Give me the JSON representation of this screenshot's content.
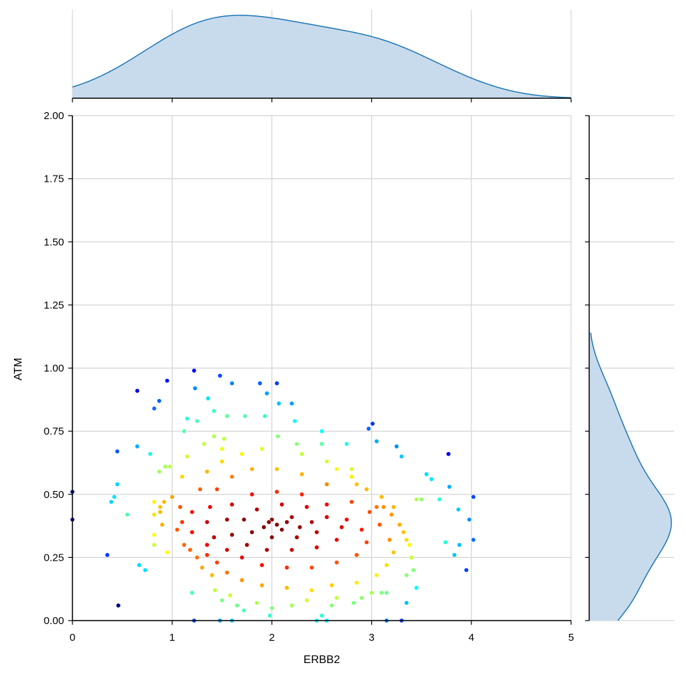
{
  "chart_data": {
    "type": "scatter",
    "title": "",
    "xlabel": "ERBB2",
    "ylabel": "ATM",
    "xlim": [
      0,
      5
    ],
    "ylim": [
      0,
      2
    ],
    "xticks": [
      "0",
      "1",
      "2",
      "3",
      "4",
      "5"
    ],
    "yticks": [
      "0.00",
      "0.25",
      "0.50",
      "0.75",
      "1.00",
      "1.25",
      "1.50",
      "1.75",
      "2.00"
    ],
    "grid": true,
    "colormap": "jet",
    "point_color_encodes": "local point density",
    "marginal_plots": {
      "top": "kde of ERBB2",
      "right": "kde of ATM",
      "fill_color": "#c5d9ec",
      "line_color": "#1f77b4"
    },
    "points_description": "approximately 700 points, dense core near ERBB2 2.1, ATM 0.38",
    "points": [
      [
        0.0,
        0.51
      ],
      [
        0.0,
        0.4
      ],
      [
        0.46,
        0.06
      ],
      [
        0.65,
        0.91
      ],
      [
        0.95,
        0.95
      ],
      [
        0.82,
        0.84
      ],
      [
        1.22,
        0.99
      ],
      [
        1.48,
        0.97
      ],
      [
        1.6,
        0.94
      ],
      [
        1.88,
        0.94
      ],
      [
        2.05,
        0.94
      ],
      [
        1.95,
        0.9
      ],
      [
        1.23,
        0.92
      ],
      [
        2.07,
        0.86
      ],
      [
        2.2,
        0.86
      ],
      [
        1.36,
        0.88
      ],
      [
        1.42,
        0.83
      ],
      [
        1.25,
        0.79
      ],
      [
        1.15,
        0.8
      ],
      [
        1.55,
        0.81
      ],
      [
        1.73,
        0.81
      ],
      [
        1.93,
        0.81
      ],
      [
        2.23,
        0.79
      ],
      [
        0.45,
        0.67
      ],
      [
        0.65,
        0.69
      ],
      [
        0.87,
        0.87
      ],
      [
        0.78,
        0.66
      ],
      [
        0.93,
        0.61
      ],
      [
        0.98,
        0.61
      ],
      [
        0.87,
        0.59
      ],
      [
        0.42,
        0.49
      ],
      [
        0.45,
        0.54
      ],
      [
        0.55,
        0.42
      ],
      [
        0.39,
        0.47
      ],
      [
        0.82,
        0.47
      ],
      [
        0.92,
        0.47
      ],
      [
        0.88,
        0.45
      ],
      [
        0.82,
        0.42
      ],
      [
        0.88,
        0.43
      ],
      [
        0.9,
        0.38
      ],
      [
        0.95,
        0.27
      ],
      [
        0.82,
        0.34
      ],
      [
        0.82,
        0.3
      ],
      [
        0.35,
        0.26
      ],
      [
        0.67,
        0.22
      ],
      [
        0.73,
        0.2
      ],
      [
        1.22,
        0.0
      ],
      [
        1.48,
        0.0
      ],
      [
        1.6,
        0.0
      ],
      [
        2.45,
        0.0
      ],
      [
        2.55,
        0.0
      ],
      [
        3.15,
        0.0
      ],
      [
        3.3,
        0.0
      ],
      [
        3.01,
        0.78
      ],
      [
        2.97,
        0.76
      ],
      [
        2.5,
        0.75
      ],
      [
        2.75,
        0.7
      ],
      [
        3.05,
        0.71
      ],
      [
        3.25,
        0.69
      ],
      [
        3.3,
        0.65
      ],
      [
        3.77,
        0.66
      ],
      [
        3.55,
        0.58
      ],
      [
        3.6,
        0.56
      ],
      [
        3.5,
        0.48
      ],
      [
        3.45,
        0.48
      ],
      [
        3.68,
        0.48
      ],
      [
        3.78,
        0.53
      ],
      [
        3.87,
        0.44
      ],
      [
        4.02,
        0.49
      ],
      [
        3.98,
        0.4
      ],
      [
        4.02,
        0.32
      ],
      [
        3.74,
        0.31
      ],
      [
        3.88,
        0.3
      ],
      [
        3.83,
        0.26
      ],
      [
        3.95,
        0.2
      ],
      [
        3.22,
        0.45
      ],
      [
        3.15,
        0.11
      ],
      [
        3.0,
        0.11
      ],
      [
        3.1,
        0.11
      ],
      [
        3.35,
        0.07
      ],
      [
        3.45,
        0.13
      ],
      [
        2.5,
        0.02
      ],
      [
        2.6,
        0.06
      ],
      [
        1.98,
        0.02
      ],
      [
        1.72,
        0.04
      ],
      [
        1.65,
        0.06
      ],
      [
        2.0,
        0.05
      ],
      [
        1.5,
        0.08
      ],
      [
        1.2,
        0.11
      ],
      [
        1.0,
        0.49
      ],
      [
        1.1,
        0.57
      ],
      [
        1.15,
        0.65
      ],
      [
        1.12,
        0.75
      ],
      [
        1.32,
        0.7
      ],
      [
        1.42,
        0.73
      ],
      [
        1.52,
        0.72
      ],
      [
        1.5,
        0.68
      ],
      [
        2.06,
        0.73
      ],
      [
        2.25,
        0.7
      ],
      [
        2.5,
        0.7
      ],
      [
        2.65,
        0.6
      ],
      [
        2.8,
        0.57
      ],
      [
        2.85,
        0.54
      ],
      [
        3.12,
        0.45
      ],
      [
        3.05,
        0.45
      ],
      [
        3.32,
        0.35
      ],
      [
        1.08,
        0.45
      ],
      [
        1.1,
        0.39
      ],
      [
        1.05,
        0.36
      ],
      [
        1.12,
        0.3
      ],
      [
        1.18,
        0.28
      ],
      [
        1.25,
        0.25
      ],
      [
        1.3,
        0.21
      ],
      [
        1.4,
        0.18
      ],
      [
        1.43,
        0.12
      ],
      [
        1.58,
        0.1
      ],
      [
        1.85,
        0.07
      ],
      [
        2.2,
        0.06
      ],
      [
        2.35,
        0.08
      ],
      [
        2.65,
        0.09
      ],
      [
        2.82,
        0.07
      ],
      [
        2.9,
        0.09
      ],
      [
        3.35,
        0.18
      ],
      [
        3.42,
        0.2
      ],
      [
        3.4,
        0.25
      ],
      [
        3.38,
        0.3
      ],
      [
        3.35,
        0.32
      ],
      [
        3.28,
        0.38
      ],
      [
        3.2,
        0.42
      ],
      [
        3.1,
        0.49
      ],
      [
        2.95,
        0.52
      ],
      [
        2.8,
        0.6
      ],
      [
        2.55,
        0.63
      ],
      [
        2.3,
        0.66
      ],
      [
        1.9,
        0.68
      ],
      [
        1.7,
        0.66
      ],
      [
        1.5,
        0.63
      ],
      [
        1.35,
        0.59
      ],
      [
        1.28,
        0.52
      ],
      [
        1.2,
        0.43
      ],
      [
        1.2,
        0.35
      ],
      [
        1.35,
        0.3
      ],
      [
        1.35,
        0.26
      ],
      [
        1.45,
        0.23
      ],
      [
        1.55,
        0.19
      ],
      [
        1.7,
        0.16
      ],
      [
        1.9,
        0.14
      ],
      [
        2.15,
        0.13
      ],
      [
        2.4,
        0.12
      ],
      [
        2.6,
        0.14
      ],
      [
        2.85,
        0.15
      ],
      [
        3.05,
        0.18
      ],
      [
        3.15,
        0.22
      ],
      [
        3.22,
        0.27
      ],
      [
        3.18,
        0.32
      ],
      [
        3.08,
        0.38
      ],
      [
        2.98,
        0.43
      ],
      [
        2.8,
        0.47
      ],
      [
        2.55,
        0.54
      ],
      [
        2.3,
        0.58
      ],
      [
        2.05,
        0.6
      ],
      [
        1.8,
        0.6
      ],
      [
        1.6,
        0.57
      ],
      [
        1.45,
        0.52
      ],
      [
        1.38,
        0.45
      ],
      [
        1.35,
        0.39
      ],
      [
        1.42,
        0.33
      ],
      [
        1.55,
        0.28
      ],
      [
        1.7,
        0.25
      ],
      [
        1.9,
        0.22
      ],
      [
        2.15,
        0.21
      ],
      [
        2.4,
        0.21
      ],
      [
        2.65,
        0.23
      ],
      [
        2.85,
        0.26
      ],
      [
        2.95,
        0.31
      ],
      [
        2.9,
        0.36
      ],
      [
        2.75,
        0.4
      ],
      [
        2.55,
        0.46
      ],
      [
        2.3,
        0.5
      ],
      [
        2.05,
        0.51
      ],
      [
        1.8,
        0.5
      ],
      [
        1.6,
        0.46
      ],
      [
        1.55,
        0.4
      ],
      [
        1.6,
        0.34
      ],
      [
        1.75,
        0.3
      ],
      [
        1.95,
        0.28
      ],
      [
        2.2,
        0.28
      ],
      [
        2.45,
        0.29
      ],
      [
        2.65,
        0.32
      ],
      [
        2.7,
        0.37
      ],
      [
        2.55,
        0.41
      ],
      [
        2.35,
        0.45
      ],
      [
        2.1,
        0.46
      ],
      [
        1.85,
        0.44
      ],
      [
        1.72,
        0.4
      ],
      [
        1.8,
        0.35
      ],
      [
        2.0,
        0.33
      ],
      [
        2.25,
        0.33
      ],
      [
        2.45,
        0.35
      ],
      [
        2.4,
        0.39
      ],
      [
        2.2,
        0.41
      ],
      [
        2.0,
        0.4
      ],
      [
        1.92,
        0.37
      ],
      [
        2.1,
        0.36
      ],
      [
        2.28,
        0.37
      ],
      [
        2.15,
        0.39
      ],
      [
        2.05,
        0.38
      ],
      [
        1.97,
        0.39
      ]
    ]
  }
}
